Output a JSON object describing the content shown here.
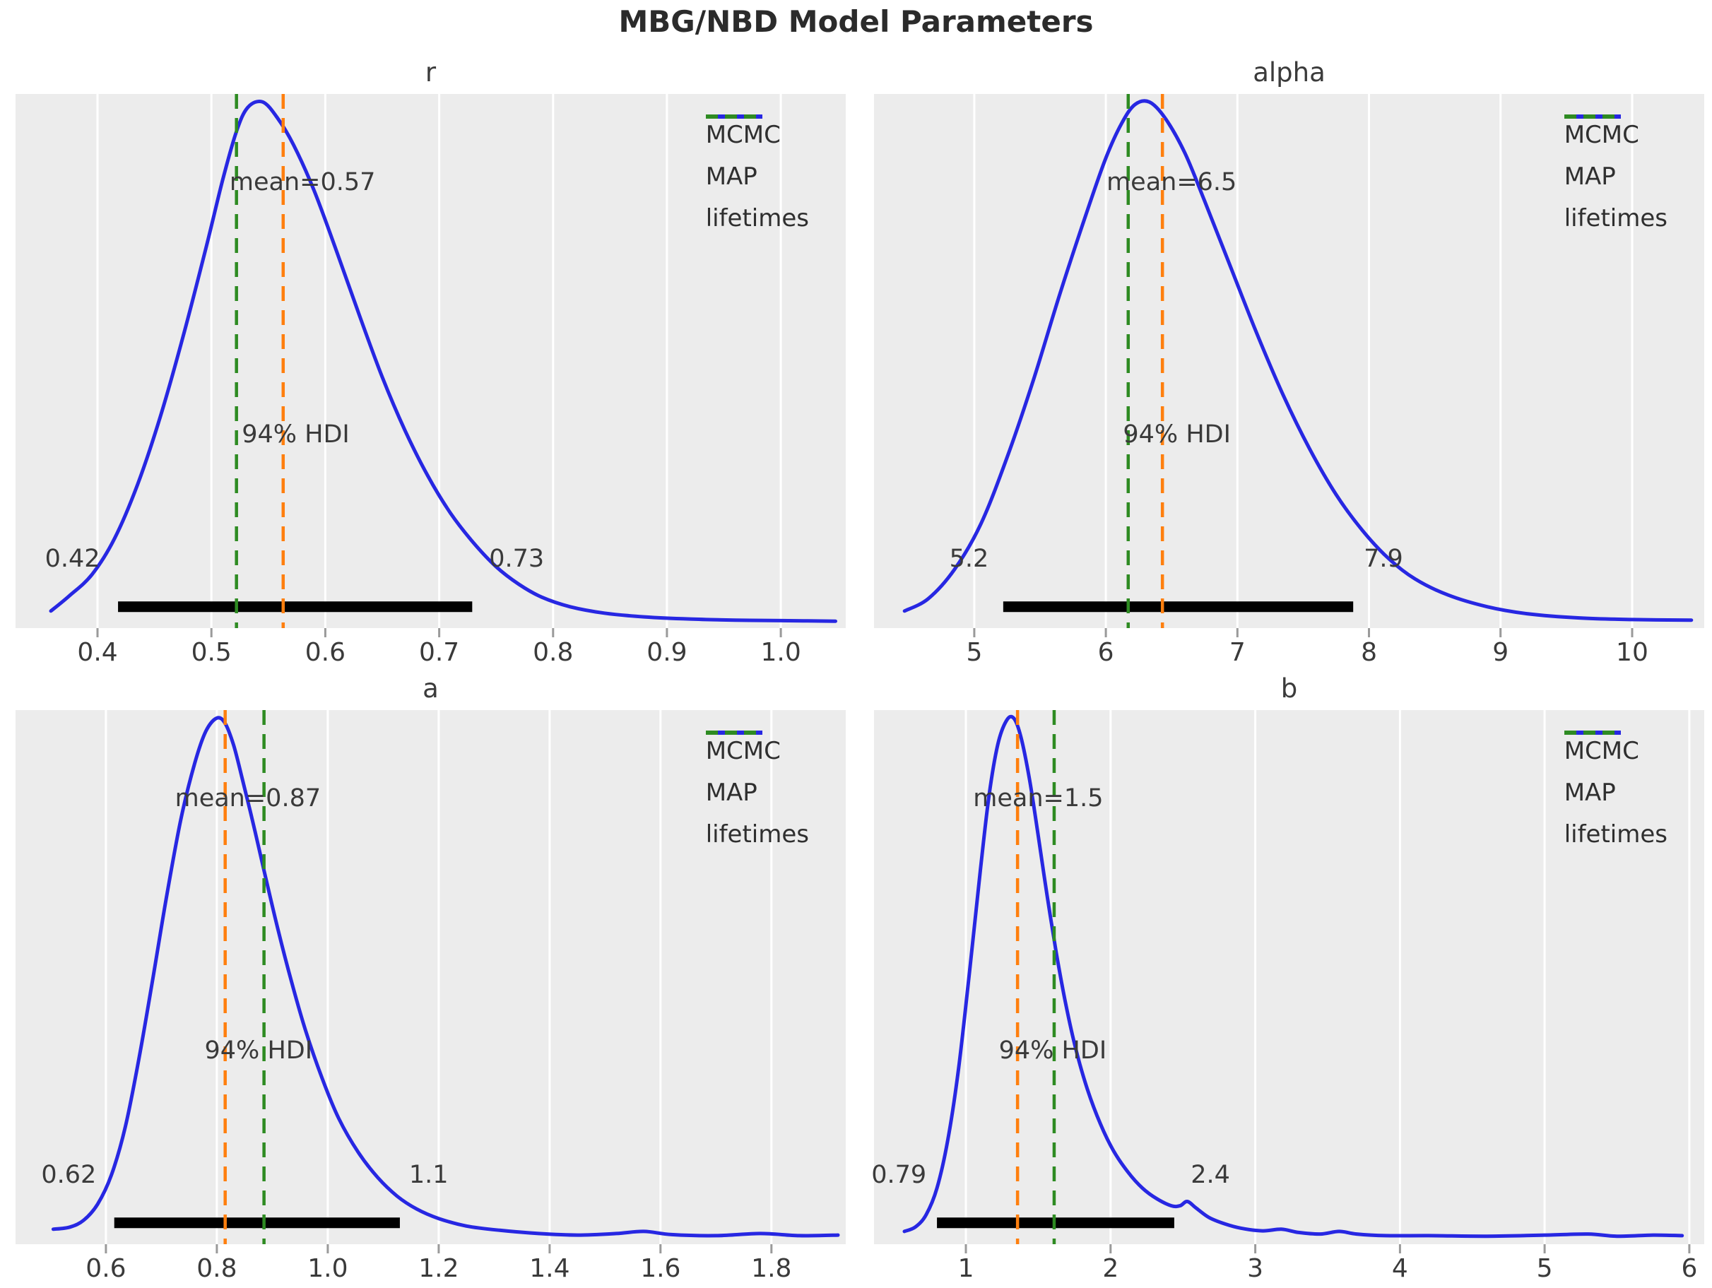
{
  "title": "MBG/NBD Model Parameters",
  "colors": {
    "mcmc": "#2727e2",
    "map": "#ff7f0e",
    "lifetimes": "#2e8b22",
    "axes_bg": "#ececec",
    "grid": "#ffffff",
    "tick_mark": "#9a9a9a",
    "hdi_bar": "#000000",
    "text": "#3a3a3a"
  },
  "legend": {
    "items": [
      {
        "label": "MCMC",
        "style": "solid",
        "color_key": "mcmc"
      },
      {
        "label": "MAP",
        "style": "dashed",
        "color_key": "map"
      },
      {
        "label": "lifetimes",
        "style": "dashed",
        "color_key": "lifetimes"
      }
    ]
  },
  "chart_data": [
    {
      "type": "kde",
      "param": "r",
      "mean": 0.57,
      "mean_label": "mean=0.57",
      "mean_label_x": 0.58,
      "mean_label_yfrac": 0.835,
      "hdi": [
        0.42,
        0.73
      ],
      "hdi_label": "94% HDI",
      "hdi_label_x": 0.574,
      "hdi_label_yfrac": 0.362,
      "hdi_bar": [
        0.418,
        0.729
      ],
      "hdi_bar_yfrac": 0.04,
      "hdi_lo_label": "0.42",
      "hdi_lo_label_x": 0.378,
      "hdi_hi_label": "0.73",
      "hdi_hi_label_x": 0.768,
      "endpoint_label_yfrac": 0.13,
      "map_line": 0.563,
      "lifetimes_line": 0.522,
      "xlim": [
        0.328,
        1.057
      ],
      "ticks": [
        0.4,
        0.5,
        0.6,
        0.7,
        0.8,
        0.9,
        1.0
      ],
      "tick_labels": [
        "0.4",
        "0.5",
        "0.6",
        "0.7",
        "0.8",
        "0.9",
        "1.0"
      ],
      "curve": [
        [
          0.359,
          0.032
        ],
        [
          0.375,
          0.06
        ],
        [
          0.395,
          0.1
        ],
        [
          0.415,
          0.168
        ],
        [
          0.435,
          0.268
        ],
        [
          0.455,
          0.395
        ],
        [
          0.475,
          0.545
        ],
        [
          0.495,
          0.71
        ],
        [
          0.51,
          0.84
        ],
        [
          0.522,
          0.93
        ],
        [
          0.532,
          0.975
        ],
        [
          0.545,
          0.985
        ],
        [
          0.558,
          0.955
        ],
        [
          0.572,
          0.905
        ],
        [
          0.59,
          0.82
        ],
        [
          0.61,
          0.705
        ],
        [
          0.63,
          0.585
        ],
        [
          0.65,
          0.47
        ],
        [
          0.67,
          0.37
        ],
        [
          0.69,
          0.285
        ],
        [
          0.71,
          0.215
        ],
        [
          0.73,
          0.16
        ],
        [
          0.75,
          0.115
        ],
        [
          0.77,
          0.082
        ],
        [
          0.79,
          0.058
        ],
        [
          0.815,
          0.04
        ],
        [
          0.845,
          0.028
        ],
        [
          0.88,
          0.021
        ],
        [
          0.92,
          0.017
        ],
        [
          0.96,
          0.015
        ],
        [
          1.0,
          0.014
        ],
        [
          1.048,
          0.013
        ]
      ]
    },
    {
      "type": "kde",
      "param": "alpha",
      "mean": 6.5,
      "mean_label": "mean=6.5",
      "mean_label_x": 6.5,
      "mean_label_yfrac": 0.835,
      "hdi": [
        5.2,
        7.9
      ],
      "hdi_label": "94% HDI",
      "hdi_label_x": 6.54,
      "hdi_label_yfrac": 0.362,
      "hdi_bar": [
        5.22,
        7.88
      ],
      "hdi_bar_yfrac": 0.04,
      "hdi_lo_label": "5.2",
      "hdi_lo_label_x": 4.96,
      "hdi_hi_label": "7.9",
      "hdi_hi_label_x": 8.11,
      "endpoint_label_yfrac": 0.13,
      "map_line": 6.43,
      "lifetimes_line": 6.17,
      "xlim": [
        4.238,
        10.548
      ],
      "ticks": [
        5,
        6,
        7,
        8,
        9,
        10
      ],
      "tick_labels": [
        "5",
        "6",
        "7",
        "8",
        "9",
        "10"
      ],
      "curve": [
        [
          4.47,
          0.032
        ],
        [
          4.65,
          0.055
        ],
        [
          4.85,
          0.11
        ],
        [
          5.05,
          0.195
        ],
        [
          5.25,
          0.32
        ],
        [
          5.45,
          0.465
        ],
        [
          5.65,
          0.625
        ],
        [
          5.85,
          0.775
        ],
        [
          6.0,
          0.88
        ],
        [
          6.12,
          0.945
        ],
        [
          6.22,
          0.98
        ],
        [
          6.33,
          0.985
        ],
        [
          6.45,
          0.955
        ],
        [
          6.6,
          0.89
        ],
        [
          6.75,
          0.8
        ],
        [
          6.95,
          0.675
        ],
        [
          7.15,
          0.55
        ],
        [
          7.35,
          0.435
        ],
        [
          7.55,
          0.335
        ],
        [
          7.75,
          0.25
        ],
        [
          7.95,
          0.183
        ],
        [
          8.15,
          0.13
        ],
        [
          8.35,
          0.092
        ],
        [
          8.6,
          0.062
        ],
        [
          8.9,
          0.04
        ],
        [
          9.2,
          0.027
        ],
        [
          9.6,
          0.019
        ],
        [
          10.0,
          0.016
        ],
        [
          10.45,
          0.015
        ]
      ]
    },
    {
      "type": "kde",
      "param": "a",
      "mean": 0.87,
      "mean_label": "mean=0.87",
      "mean_label_x": 0.856,
      "mean_label_yfrac": 0.835,
      "hdi": [
        0.62,
        1.1
      ],
      "hdi_label": "94% HDI",
      "hdi_label_x": 0.875,
      "hdi_label_yfrac": 0.362,
      "hdi_bar": [
        0.615,
        1.13
      ],
      "hdi_bar_yfrac": 0.04,
      "hdi_lo_label": "0.62",
      "hdi_lo_label_x": 0.533,
      "hdi_hi_label": "1.1",
      "hdi_hi_label_x": 1.182,
      "endpoint_label_yfrac": 0.13,
      "map_line": 0.815,
      "lifetimes_line": 0.885,
      "xlim": [
        0.437,
        1.934
      ],
      "ticks": [
        0.6,
        0.8,
        1.0,
        1.2,
        1.4,
        1.6,
        1.8
      ],
      "tick_labels": [
        "0.6",
        "0.8",
        "1.0",
        "1.2",
        "1.4",
        "1.6",
        "1.8"
      ],
      "curve": [
        [
          0.505,
          0.028
        ],
        [
          0.535,
          0.032
        ],
        [
          0.56,
          0.045
        ],
        [
          0.585,
          0.075
        ],
        [
          0.61,
          0.13
        ],
        [
          0.635,
          0.22
        ],
        [
          0.66,
          0.35
        ],
        [
          0.685,
          0.5
        ],
        [
          0.71,
          0.655
        ],
        [
          0.735,
          0.795
        ],
        [
          0.76,
          0.9
        ],
        [
          0.78,
          0.96
        ],
        [
          0.8,
          0.985
        ],
        [
          0.815,
          0.975
        ],
        [
          0.83,
          0.935
        ],
        [
          0.845,
          0.875
        ],
        [
          0.865,
          0.79
        ],
        [
          0.885,
          0.7
        ],
        [
          0.91,
          0.59
        ],
        [
          0.935,
          0.49
        ],
        [
          0.96,
          0.4
        ],
        [
          0.99,
          0.31
        ],
        [
          1.02,
          0.235
        ],
        [
          1.055,
          0.172
        ],
        [
          1.09,
          0.125
        ],
        [
          1.125,
          0.09
        ],
        [
          1.16,
          0.066
        ],
        [
          1.2,
          0.048
        ],
        [
          1.25,
          0.034
        ],
        [
          1.31,
          0.026
        ],
        [
          1.38,
          0.02
        ],
        [
          1.45,
          0.017
        ],
        [
          1.52,
          0.02
        ],
        [
          1.57,
          0.024
        ],
        [
          1.62,
          0.018
        ],
        [
          1.7,
          0.016
        ],
        [
          1.78,
          0.02
        ],
        [
          1.85,
          0.016
        ],
        [
          1.92,
          0.017
        ]
      ]
    },
    {
      "type": "kde",
      "param": "b",
      "mean": 1.5,
      "mean_label": "mean=1.5",
      "mean_label_x": 1.5,
      "mean_label_yfrac": 0.835,
      "hdi": [
        0.79,
        2.4
      ],
      "hdi_label": "94% HDI",
      "hdi_label_x": 1.6,
      "hdi_label_yfrac": 0.362,
      "hdi_bar": [
        0.8,
        2.44
      ],
      "hdi_bar_yfrac": 0.04,
      "hdi_lo_label": "0.79",
      "hdi_lo_label_x": 0.537,
      "hdi_hi_label": "2.4",
      "hdi_hi_label_x": 2.69,
      "endpoint_label_yfrac": 0.13,
      "map_line": 1.357,
      "lifetimes_line": 1.61,
      "xlim": [
        0.365,
        6.103
      ],
      "ticks": [
        1,
        2,
        3,
        4,
        5,
        6
      ],
      "tick_labels": [
        "1",
        "2",
        "3",
        "4",
        "5",
        "6"
      ],
      "curve": [
        [
          0.575,
          0.024
        ],
        [
          0.65,
          0.032
        ],
        [
          0.725,
          0.055
        ],
        [
          0.8,
          0.105
        ],
        [
          0.875,
          0.195
        ],
        [
          0.95,
          0.33
        ],
        [
          1.025,
          0.51
        ],
        [
          1.1,
          0.7
        ],
        [
          1.16,
          0.84
        ],
        [
          1.22,
          0.935
        ],
        [
          1.28,
          0.98
        ],
        [
          1.33,
          0.985
        ],
        [
          1.38,
          0.95
        ],
        [
          1.44,
          0.87
        ],
        [
          1.5,
          0.765
        ],
        [
          1.56,
          0.655
        ],
        [
          1.625,
          0.545
        ],
        [
          1.69,
          0.45
        ],
        [
          1.76,
          0.365
        ],
        [
          1.84,
          0.29
        ],
        [
          1.93,
          0.225
        ],
        [
          2.02,
          0.175
        ],
        [
          2.12,
          0.135
        ],
        [
          2.22,
          0.105
        ],
        [
          2.32,
          0.085
        ],
        [
          2.42,
          0.072
        ],
        [
          2.48,
          0.072
        ],
        [
          2.53,
          0.08
        ],
        [
          2.59,
          0.068
        ],
        [
          2.68,
          0.05
        ],
        [
          2.79,
          0.038
        ],
        [
          2.9,
          0.03
        ],
        [
          3.05,
          0.025
        ],
        [
          3.18,
          0.028
        ],
        [
          3.3,
          0.022
        ],
        [
          3.45,
          0.019
        ],
        [
          3.58,
          0.024
        ],
        [
          3.7,
          0.019
        ],
        [
          3.9,
          0.016
        ],
        [
          4.2,
          0.016
        ],
        [
          4.6,
          0.015
        ],
        [
          5.0,
          0.017
        ],
        [
          5.3,
          0.019
        ],
        [
          5.5,
          0.015
        ],
        [
          5.75,
          0.017
        ],
        [
          5.95,
          0.016
        ]
      ]
    }
  ]
}
